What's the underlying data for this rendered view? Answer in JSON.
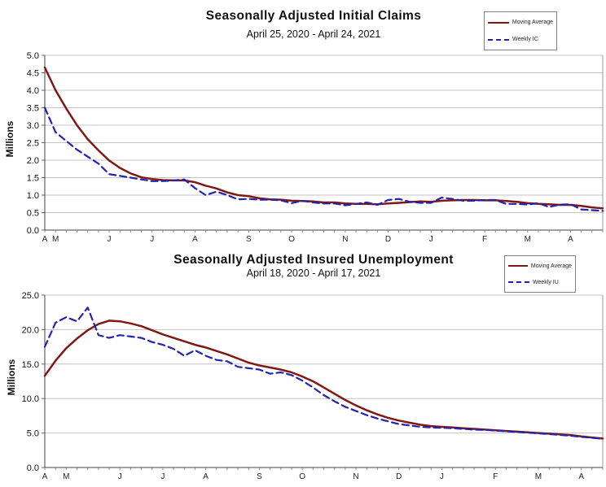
{
  "page": {
    "background": "#ffffff",
    "grid_color": "#c4c4c4",
    "axis_color": "#444444"
  },
  "chart_data": [
    {
      "type": "line",
      "title": "Seasonally Adjusted Initial Claims",
      "subtitle": "April 25, 2020 - April 24, 2021",
      "ylabel": "Millions",
      "ylim": [
        0,
        5.0
      ],
      "yticks": [
        "0.0",
        "0.5",
        "1.0",
        "1.5",
        "2.0",
        "2.5",
        "3.0",
        "3.5",
        "4.0",
        "4.5",
        "5.0"
      ],
      "weeks": 53,
      "grid": true,
      "legend_position": "top-right",
      "x_months": [
        {
          "label": "A",
          "week": 0
        },
        {
          "label": "M",
          "week": 1
        },
        {
          "label": "J",
          "week": 6
        },
        {
          "label": "J",
          "week": 10
        },
        {
          "label": "A",
          "week": 14
        },
        {
          "label": "S",
          "week": 19
        },
        {
          "label": "O",
          "week": 23
        },
        {
          "label": "N",
          "week": 28
        },
        {
          "label": "D",
          "week": 32
        },
        {
          "label": "J",
          "week": 36
        },
        {
          "label": "F",
          "week": 41
        },
        {
          "label": "M",
          "week": 45
        },
        {
          "label": "A",
          "week": 49
        }
      ],
      "series": [
        {
          "name": "Moving Average",
          "color": "#801815",
          "dash": "solid",
          "values": [
            4.65,
            4.0,
            3.48,
            3.0,
            2.6,
            2.28,
            1.99,
            1.78,
            1.62,
            1.51,
            1.46,
            1.43,
            1.42,
            1.42,
            1.37,
            1.27,
            1.19,
            1.08,
            1.0,
            0.97,
            0.91,
            0.88,
            0.87,
            0.84,
            0.83,
            0.82,
            0.79,
            0.79,
            0.76,
            0.75,
            0.75,
            0.74,
            0.76,
            0.78,
            0.8,
            0.82,
            0.81,
            0.84,
            0.85,
            0.86,
            0.86,
            0.85,
            0.85,
            0.83,
            0.81,
            0.77,
            0.75,
            0.74,
            0.72,
            0.72,
            0.69,
            0.65,
            0.62
          ]
        },
        {
          "name": "Weekly IC",
          "color": "#2323ae",
          "dash": "dashed",
          "values": [
            3.5,
            2.8,
            2.55,
            2.3,
            2.1,
            1.9,
            1.6,
            1.55,
            1.5,
            1.45,
            1.4,
            1.4,
            1.42,
            1.45,
            1.2,
            1.0,
            1.1,
            1.0,
            0.88,
            0.89,
            0.87,
            0.87,
            0.85,
            0.77,
            0.84,
            0.79,
            0.76,
            0.76,
            0.71,
            0.75,
            0.79,
            0.72,
            0.86,
            0.89,
            0.81,
            0.78,
            0.78,
            0.93,
            0.89,
            0.84,
            0.84,
            0.86,
            0.86,
            0.75,
            0.75,
            0.73,
            0.77,
            0.66,
            0.73,
            0.74,
            0.59,
            0.57,
            0.55
          ]
        }
      ]
    },
    {
      "type": "line",
      "title": "Seasonally Adjusted Insured Unemployment",
      "subtitle": "April 18, 2020 - April 17, 2021",
      "ylabel": "Millions",
      "ylim": [
        0,
        25.0
      ],
      "yticks": [
        "0.0",
        "5.0",
        "10.0",
        "15.0",
        "20.0",
        "25.0"
      ],
      "weeks": 53,
      "grid": true,
      "legend_position": "top-right",
      "x_months": [
        {
          "label": "A",
          "week": 0
        },
        {
          "label": "M",
          "week": 2
        },
        {
          "label": "J",
          "week": 7
        },
        {
          "label": "J",
          "week": 11
        },
        {
          "label": "A",
          "week": 15
        },
        {
          "label": "S",
          "week": 20
        },
        {
          "label": "O",
          "week": 24
        },
        {
          "label": "N",
          "week": 29
        },
        {
          "label": "D",
          "week": 33
        },
        {
          "label": "J",
          "week": 37
        },
        {
          "label": "F",
          "week": 42
        },
        {
          "label": "M",
          "week": 46
        },
        {
          "label": "A",
          "week": 50
        }
      ],
      "series": [
        {
          "name": "Moving Average",
          "color": "#801815",
          "dash": "solid",
          "values": [
            13.3,
            15.5,
            17.3,
            18.7,
            19.9,
            20.8,
            21.3,
            21.2,
            20.9,
            20.5,
            19.9,
            19.3,
            18.8,
            18.3,
            17.8,
            17.4,
            16.9,
            16.4,
            15.8,
            15.2,
            14.8,
            14.5,
            14.2,
            13.8,
            13.2,
            12.5,
            11.6,
            10.7,
            9.8,
            9.0,
            8.3,
            7.7,
            7.2,
            6.8,
            6.5,
            6.2,
            6.0,
            5.9,
            5.8,
            5.7,
            5.6,
            5.5,
            5.4,
            5.3,
            5.2,
            5.1,
            5.0,
            4.9,
            4.8,
            4.7,
            4.5,
            4.35,
            4.2
          ]
        },
        {
          "name": "Weekly IU",
          "color": "#2323ae",
          "dash": "dashed",
          "values": [
            17.5,
            21.0,
            21.8,
            21.2,
            23.2,
            19.2,
            18.8,
            19.2,
            19.0,
            18.8,
            18.2,
            17.8,
            17.2,
            16.2,
            17.0,
            16.2,
            15.6,
            15.4,
            14.6,
            14.4,
            14.2,
            13.6,
            13.8,
            13.4,
            12.6,
            11.6,
            10.5,
            9.6,
            8.8,
            8.2,
            7.6,
            7.1,
            6.7,
            6.3,
            6.1,
            5.9,
            5.8,
            5.75,
            5.7,
            5.6,
            5.5,
            5.45,
            5.35,
            5.25,
            5.15,
            5.05,
            4.95,
            4.85,
            4.72,
            4.6,
            4.45,
            4.3,
            4.15
          ]
        }
      ]
    }
  ]
}
